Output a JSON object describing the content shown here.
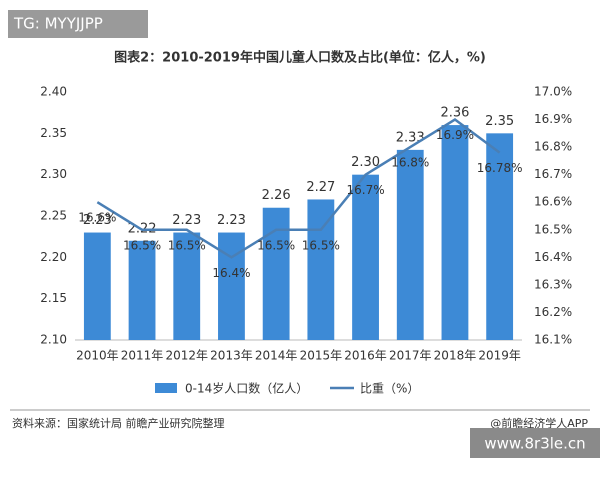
{
  "chart_data": {
    "type": "bar-line",
    "title": "图表2：2010-2019年中国儿童人口数及占比(单位：亿人，%)",
    "categories": [
      "2010年",
      "2011年",
      "2012年",
      "2013年",
      "2014年",
      "2015年",
      "2016年",
      "2017年",
      "2018年",
      "2019年"
    ],
    "series": [
      {
        "name": "0-14岁人口数（亿人）",
        "color": "#3d8ad6",
        "type": "bar",
        "values": [
          2.23,
          2.22,
          2.23,
          2.23,
          2.26,
          2.27,
          2.3,
          2.33,
          2.36,
          2.35
        ],
        "value_labels": [
          "2.23",
          "2.22",
          "2.23",
          "2.23",
          "2.26",
          "2.27",
          "2.30",
          "2.33",
          "2.36",
          "2.35"
        ]
      },
      {
        "name": "比重（%）",
        "color": "#4a7fb5",
        "type": "line",
        "axis": "y2",
        "values": [
          16.6,
          16.5,
          16.5,
          16.4,
          16.5,
          16.5,
          16.7,
          16.8,
          16.9,
          16.78
        ],
        "value_labels": [
          "16.6%",
          "16.5%",
          "16.5%",
          "16.4%",
          "16.5%",
          "16.5%",
          "16.7%",
          "16.8%",
          "16.9%",
          "16.78%"
        ]
      }
    ],
    "ylim": [
      2.1,
      2.4
    ],
    "yticks": [
      {
        "value": 2.1,
        "label": "2.10"
      },
      2.15,
      {
        "value": 2.2,
        "label": "2.20"
      },
      2.25,
      {
        "value": 2.3,
        "label": "2.30"
      },
      2.35,
      {
        "value": 2.4,
        "label": "2.40"
      }
    ],
    "y2lim": [
      16.1,
      17.0
    ],
    "y2ticks": [
      {
        "value": 16.1,
        "label": "16.1%"
      },
      {
        "value": 16.2,
        "label": "16.2%"
      },
      {
        "value": 16.3,
        "label": "16.3%"
      },
      {
        "value": 16.4,
        "label": "16.4%"
      },
      {
        "value": 16.5,
        "label": "16.5%"
      },
      {
        "value": 16.6,
        "label": "16.6%"
      },
      {
        "value": 16.7,
        "label": "16.7%"
      },
      {
        "value": 16.8,
        "label": "16.8%"
      },
      {
        "value": 16.9,
        "label": "16.9%"
      },
      {
        "value": 17.0,
        "label": "17.0%"
      }
    ],
    "grid": false,
    "legend": "bottom"
  },
  "source": "资料来源：国家统计局 前瞻产业研究院整理",
  "credit": "@前瞻经济学人APP",
  "watermark": "TG: MYYJJPP",
  "site": "www.8r3le.cn"
}
